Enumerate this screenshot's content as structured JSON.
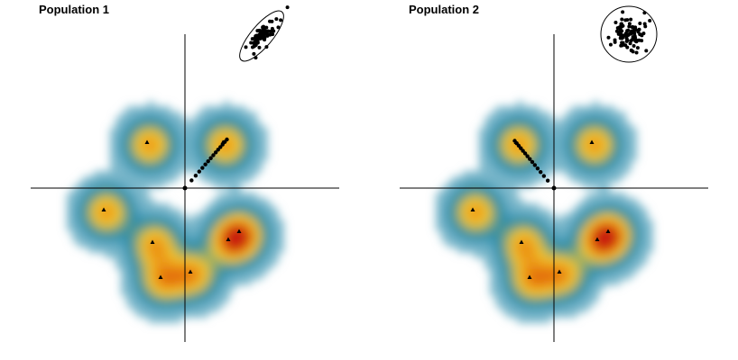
{
  "panels": [
    {
      "title": "Population 1",
      "inset_type": "correlated-ellipse",
      "trajectory_direction": "up-right"
    },
    {
      "title": "Population 2",
      "inset_type": "isotropic-circle",
      "trajectory_direction": "up-left"
    }
  ],
  "peak_markers": [
    {
      "x": -1.4,
      "y": 1.7
    },
    {
      "x": 1.4,
      "y": 1.7
    },
    {
      "x": -3.0,
      "y": -0.8
    },
    {
      "x": -1.2,
      "y": -2.0
    },
    {
      "x": 1.6,
      "y": -1.9
    },
    {
      "x": 2.0,
      "y": -1.6
    },
    {
      "x": -0.9,
      "y": -3.3
    },
    {
      "x": 0.2,
      "y": -3.1
    }
  ],
  "colormap": [
    "#ffffff",
    "#2b8cab",
    "#f2c62c",
    "#e8820e",
    "#c81d08"
  ],
  "colors": {
    "axis": "#000000",
    "marker": "#000000"
  }
}
